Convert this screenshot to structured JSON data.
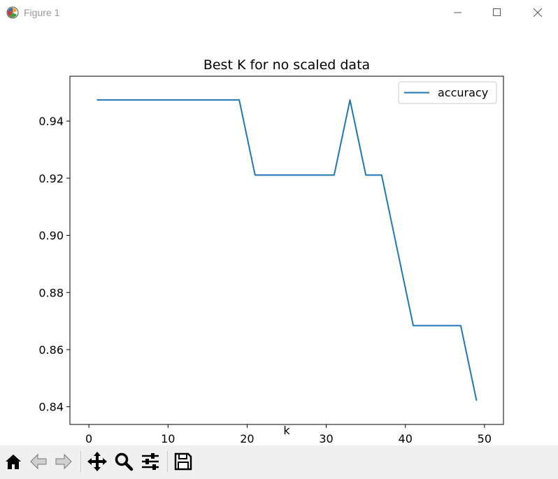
{
  "window": {
    "title": "Figure 1",
    "icons": [
      "app-icon",
      "minimize-icon",
      "maximize-icon",
      "close-icon"
    ]
  },
  "chart_data": {
    "type": "line",
    "title": "Best K for no scaled data",
    "xlabel": "k",
    "ylabel": "",
    "xlim": [
      -2.4,
      52.4
    ],
    "ylim": [
      0.8338,
      0.9557
    ],
    "x_ticks": [
      0,
      10,
      20,
      30,
      40,
      50
    ],
    "y_ticks": [
      0.84,
      0.86,
      0.88,
      0.9,
      0.92,
      0.94
    ],
    "y_tick_labels": [
      "0.84",
      "0.86",
      "0.88",
      "0.90",
      "0.92",
      "0.94"
    ],
    "grid": false,
    "legend_position": "top-right",
    "series": [
      {
        "name": "accuracy",
        "color": "#1f77b4",
        "x": [
          1,
          3,
          5,
          7,
          9,
          11,
          13,
          15,
          17,
          19,
          21,
          23,
          25,
          27,
          29,
          31,
          33,
          35,
          37,
          39,
          41,
          43,
          45,
          47,
          49
        ],
        "y": [
          0.9474,
          0.9474,
          0.9474,
          0.9474,
          0.9474,
          0.9474,
          0.9474,
          0.9474,
          0.9474,
          0.9474,
          0.9211,
          0.9211,
          0.9211,
          0.9211,
          0.9211,
          0.9211,
          0.9474,
          0.9211,
          0.9211,
          0.8947,
          0.8684,
          0.8684,
          0.8684,
          0.8684,
          0.8421
        ]
      }
    ]
  },
  "toolbar": {
    "buttons": [
      "home-icon",
      "back-icon",
      "forward-icon",
      "pan-icon",
      "zoom-icon",
      "configure-subplots-icon",
      "save-icon"
    ]
  }
}
